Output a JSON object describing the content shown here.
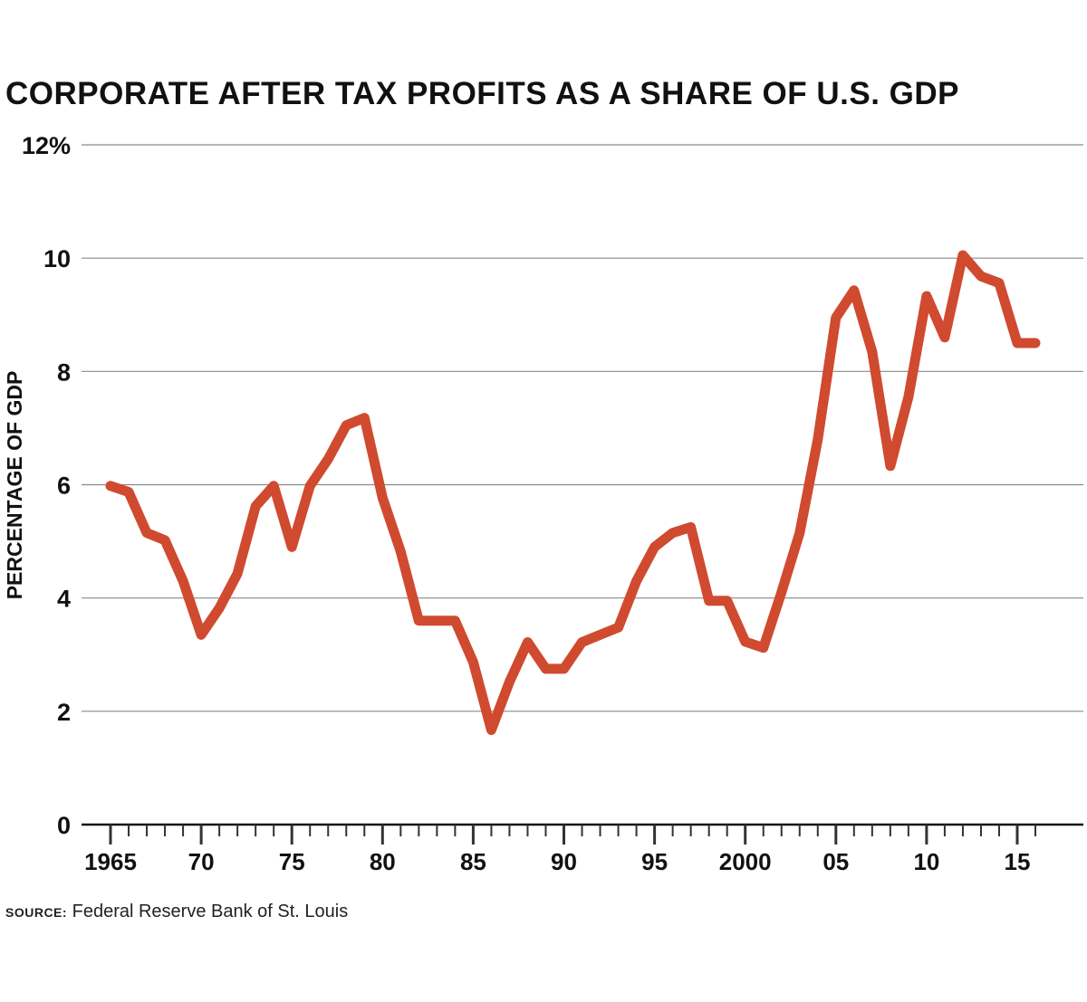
{
  "chart_data": {
    "type": "line",
    "title": "CORPORATE AFTER TAX PROFITS AS A SHARE OF U.S. GDP",
    "ylabel": "PERCENTAGE OF GDP",
    "xlabel": "",
    "ylim": [
      0,
      12
    ],
    "xlim": [
      1964,
      2018
    ],
    "y_ticks": [
      {
        "value": 0,
        "label": "0"
      },
      {
        "value": 2,
        "label": "2"
      },
      {
        "value": 4,
        "label": "4"
      },
      {
        "value": 6,
        "label": "6"
      },
      {
        "value": 8,
        "label": "8"
      },
      {
        "value": 10,
        "label": "10"
      },
      {
        "value": 12,
        "label": "12%"
      }
    ],
    "x_ticks": [
      {
        "value": 1965,
        "label": "1965"
      },
      {
        "value": 1970,
        "label": "70"
      },
      {
        "value": 1975,
        "label": "75"
      },
      {
        "value": 1980,
        "label": "80"
      },
      {
        "value": 1985,
        "label": "85"
      },
      {
        "value": 1990,
        "label": "90"
      },
      {
        "value": 1995,
        "label": "95"
      },
      {
        "value": 2000,
        "label": "2000"
      },
      {
        "value": 2005,
        "label": "05"
      },
      {
        "value": 2010,
        "label": "10"
      },
      {
        "value": 2015,
        "label": "15"
      }
    ],
    "grid": true,
    "series": [
      {
        "color": "#d04a2f",
        "x": [
          1965,
          1966,
          1967,
          1968,
          1969,
          1970,
          1971,
          1972,
          1973,
          1974,
          1975,
          1976,
          1977,
          1978,
          1979,
          1980,
          1981,
          1982,
          1983,
          1984,
          1985,
          1986,
          1987,
          1988,
          1989,
          1990,
          1991,
          1992,
          1993,
          1994,
          1995,
          1996,
          1997,
          1998,
          1999,
          2000,
          2001,
          2002,
          2003,
          2004,
          2005,
          2006,
          2007,
          2008,
          2009,
          2010,
          2011,
          2012,
          2013,
          2014,
          2015,
          2016
        ],
        "y": [
          5.98,
          5.87,
          5.15,
          5.02,
          4.3,
          3.35,
          3.82,
          4.43,
          5.62,
          5.98,
          4.9,
          5.98,
          6.45,
          7.05,
          7.18,
          5.77,
          4.82,
          3.6,
          3.6,
          3.6,
          2.87,
          1.67,
          2.52,
          3.22,
          2.75,
          2.75,
          3.22,
          3.35,
          3.48,
          4.3,
          4.9,
          5.15,
          5.25,
          3.95,
          3.95,
          3.23,
          3.12,
          4.1,
          5.15,
          6.8,
          8.95,
          9.43,
          8.35,
          6.33,
          7.55,
          9.33,
          8.6,
          10.05,
          9.68,
          9.56,
          8.5,
          8.5
        ]
      }
    ]
  },
  "source": {
    "label": "SOURCE:",
    "text": " Federal Reserve Bank of St. Louis"
  }
}
